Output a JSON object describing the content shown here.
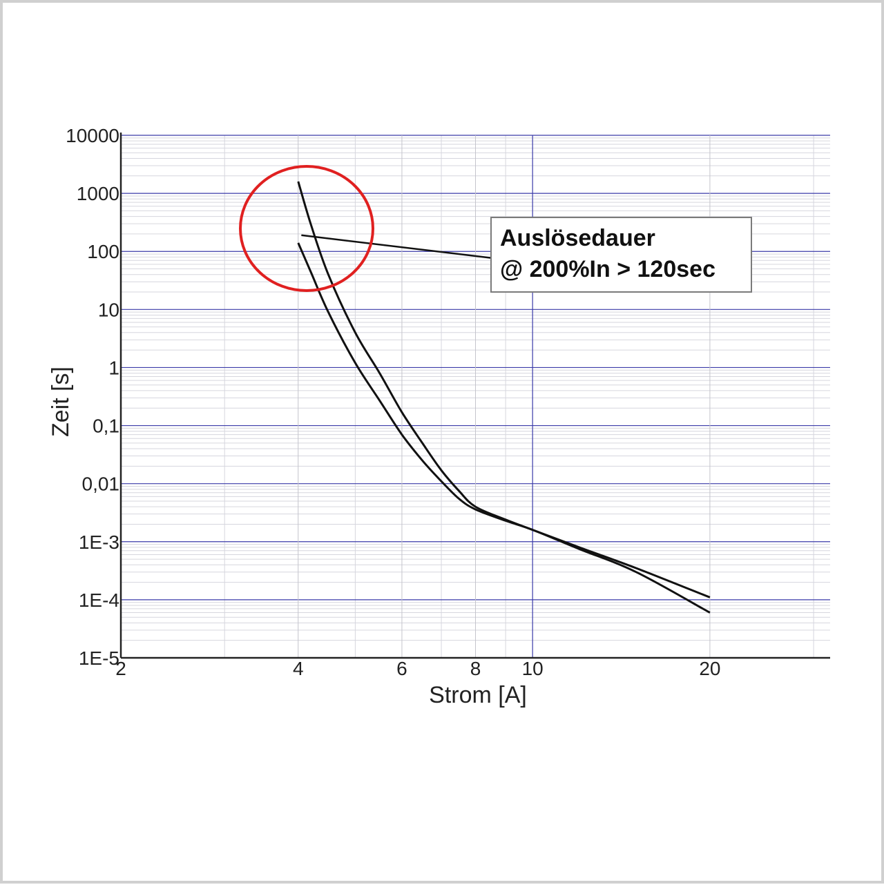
{
  "chart_data": {
    "type": "line",
    "xlabel": "Strom [A]",
    "ylabel": "Zeit [s]",
    "x_scale": "log",
    "y_scale": "log",
    "xlim": [
      2,
      32
    ],
    "ylim": [
      1e-05,
      10000
    ],
    "x_ticks": [
      {
        "value": 2,
        "label": "2"
      },
      {
        "value": 4,
        "label": "4"
      },
      {
        "value": 6,
        "label": "6"
      },
      {
        "value": 8,
        "label": "8"
      },
      {
        "value": 10,
        "label": "10"
      },
      {
        "value": 20,
        "label": "20"
      }
    ],
    "y_ticks": [
      {
        "value": 10000,
        "label": "10000"
      },
      {
        "value": 1000,
        "label": "1000"
      },
      {
        "value": 100,
        "label": "100"
      },
      {
        "value": 10,
        "label": "10"
      },
      {
        "value": 1,
        "label": "1"
      },
      {
        "value": 0.1,
        "label": "0,1"
      },
      {
        "value": 0.01,
        "label": "0,01"
      },
      {
        "value": 0.001,
        "label": "1E-3"
      },
      {
        "value": 0.0001,
        "label": "1E-4"
      },
      {
        "value": 1e-05,
        "label": "1E-5"
      }
    ],
    "grid": true,
    "grid_color": "#3a3aa8",
    "minor_grid_color": "#d6d6de",
    "line_color": "#111111",
    "series": [
      {
        "x": [
          4.0,
          4.2,
          4.5,
          5.0,
          5.5,
          6.0,
          6.5,
          7.0,
          7.5,
          8.0,
          9.0,
          10.0,
          12.0,
          15.0,
          20.0
        ],
        "y": [
          1600,
          300,
          40,
          4,
          0.8,
          0.17,
          0.05,
          0.017,
          0.0075,
          0.004,
          0.0024,
          0.0016,
          0.0008,
          0.00035,
          0.00011
        ]
      },
      {
        "x": [
          4.0,
          4.2,
          4.5,
          5.0,
          5.5,
          6.0,
          6.5,
          7.0,
          7.5,
          8.0,
          9.0,
          10.0,
          12.0,
          15.0,
          20.0
        ],
        "y": [
          140,
          45,
          9,
          1.2,
          0.27,
          0.07,
          0.025,
          0.011,
          0.0055,
          0.0036,
          0.0023,
          0.0016,
          0.00075,
          0.0003,
          6e-05
        ]
      }
    ],
    "annotation": {
      "line1": "Auslösedauer",
      "line2": "@ 200%In > 120sec",
      "pointer_x": 4.05,
      "pointer_y": 190,
      "circle_color": "#e02020"
    }
  }
}
